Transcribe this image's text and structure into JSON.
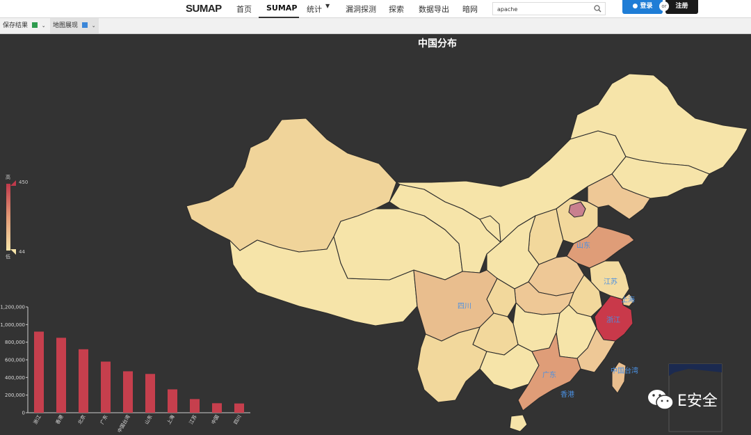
{
  "header": {
    "logo": "SUMAP",
    "nav": [
      {
        "label": "首页"
      },
      {
        "label": "SUMAP"
      },
      {
        "label": "统计"
      },
      {
        "label": "漏洞探测"
      },
      {
        "label": "探索"
      },
      {
        "label": "数据导出"
      },
      {
        "label": "暗网"
      }
    ],
    "search_value": "apache",
    "login_label": "登录",
    "or_label": "or",
    "register_label": "注册"
  },
  "toolbar": {
    "save_label": "保存结果",
    "map_label": "地图展现"
  },
  "map": {
    "title": "中国分布",
    "legend": {
      "high_label": "高",
      "low_label": "低",
      "max": 450,
      "min": 44
    },
    "region_labels": [
      "山东",
      "江苏",
      "上海",
      "浙江",
      "四川",
      "广东",
      "香港",
      "中国台湾"
    ],
    "colors": {
      "background": "#333333",
      "base": "#f6e4a9",
      "light": "#f2d89c",
      "medium": "#e9c08e",
      "strong": "#df9d78",
      "high": "#c9394a",
      "border": "#222222",
      "label": "#4a90e2"
    }
  },
  "chart_data": {
    "type": "bar",
    "categories": [
      "浙江",
      "香港",
      "北京",
      "广东",
      "中国台湾",
      "山东",
      "上海",
      "江苏",
      "中国",
      "四川"
    ],
    "values": [
      920000,
      850000,
      720000,
      580000,
      470000,
      440000,
      265000,
      155000,
      108000,
      105000
    ],
    "ylim": [
      0,
      1200000
    ],
    "yticks": [
      "0",
      "200,000",
      "400,000",
      "600,000",
      "800,000",
      "1,000,000",
      "1,200,000"
    ],
    "bar_color": "#c63f4d"
  },
  "watermark": "E安全"
}
